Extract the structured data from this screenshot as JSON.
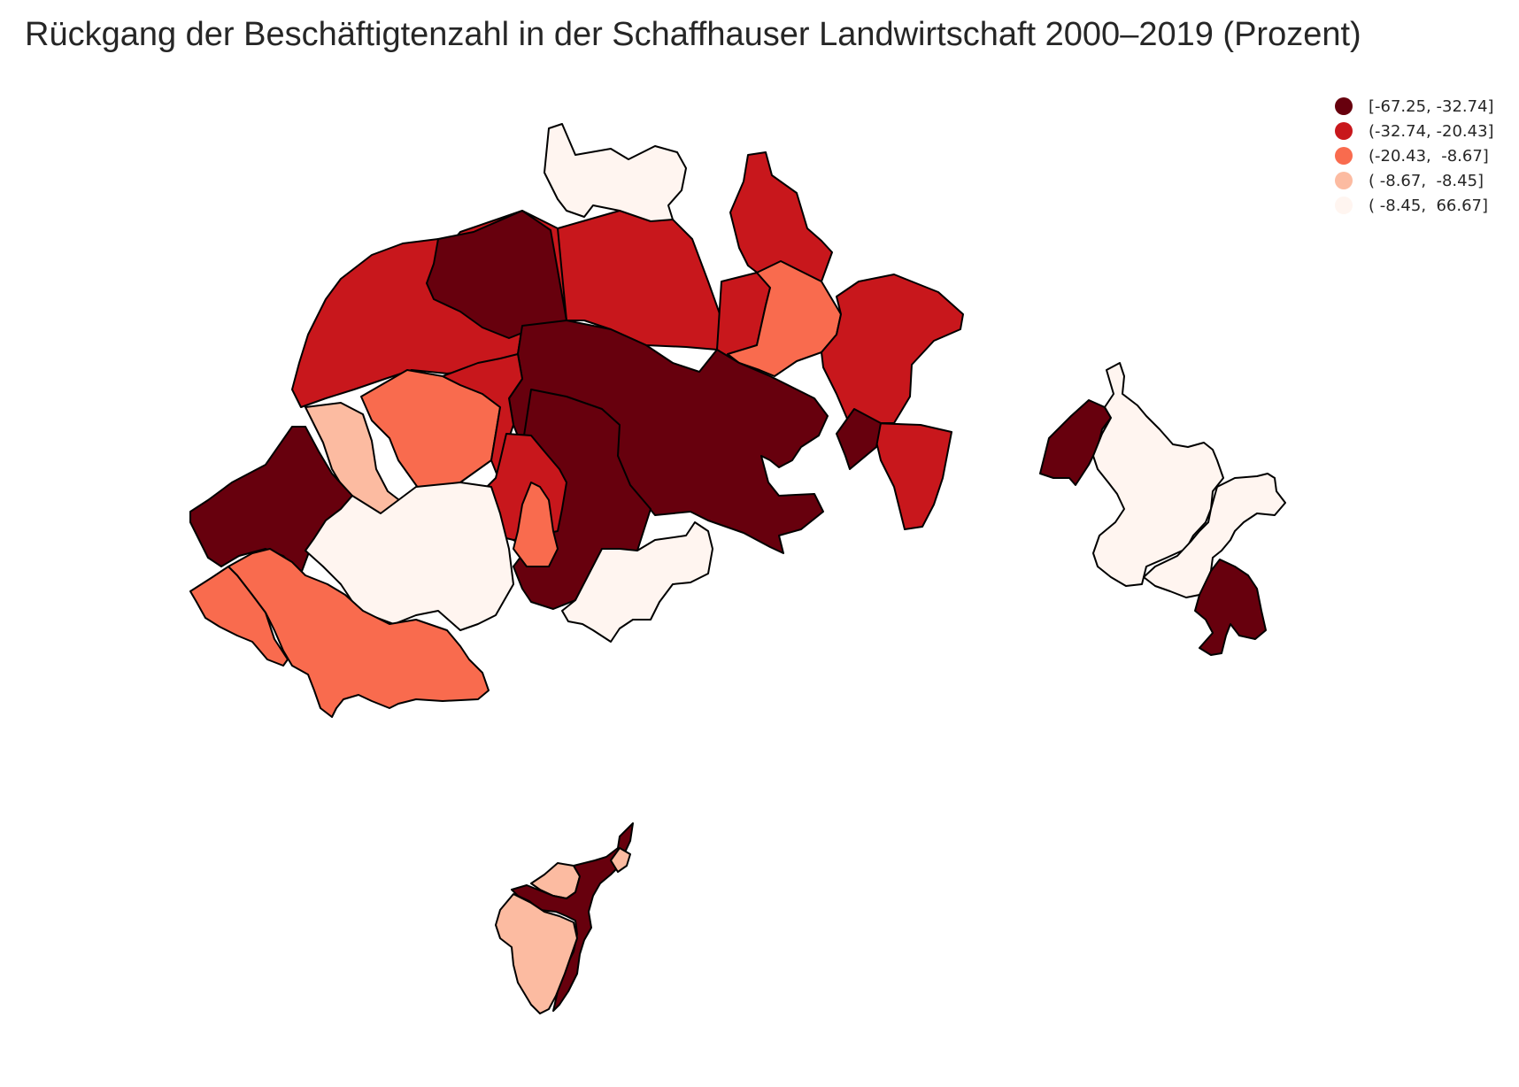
{
  "title": "Rückgang der Beschäftigtenzahl in der Schaffhauser Landwirtschaft 2000–2019 (Prozent)",
  "legend": {
    "placement": "top-right",
    "items": [
      {
        "label": "[-67.25, -32.74]",
        "color": "#67000d"
      },
      {
        "label": "(-32.74, -20.43]",
        "color": "#c8171c"
      },
      {
        "label": "(-20.43,  -8.67]",
        "color": "#f96b4e"
      },
      {
        "label": "( -8.67,  -8.45]",
        "color": "#fcbba1"
      },
      {
        "label": "( -8.45,  66.67]",
        "color": "#fff5f0"
      }
    ]
  },
  "colors": {
    "class_1": "#67000d",
    "class_2": "#c8171c",
    "class_3": "#f96b4e",
    "class_4": "#fcbba1",
    "class_5": "#fff5f0",
    "border": "#000000"
  }
}
